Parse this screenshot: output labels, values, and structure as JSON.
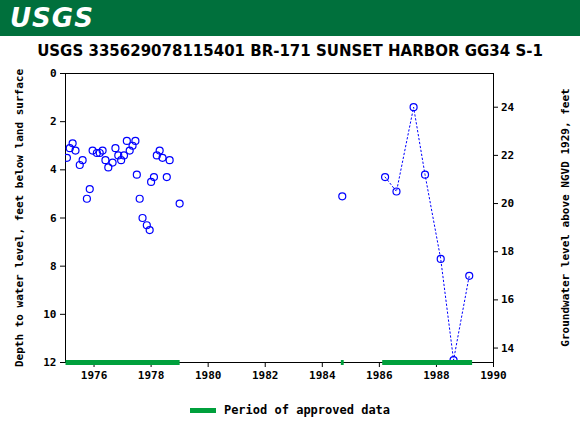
{
  "header": {
    "logo": "USGS"
  },
  "chart_data": {
    "type": "scatter",
    "title": "USGS 335629078115401 BR-171 SUNSET HARBOR GG34 S-1",
    "ylabel": "Depth to water level, feet below land surface",
    "y2label": "Groundwater level above NGVD 1929, feet",
    "x": [
      1975.05,
      1975.15,
      1975.25,
      1975.35,
      1975.5,
      1975.6,
      1975.75,
      1975.85,
      1975.95,
      1976.1,
      1976.2,
      1976.3,
      1976.4,
      1976.5,
      1976.65,
      1976.75,
      1976.85,
      1976.95,
      1977.05,
      1977.15,
      1977.25,
      1977.35,
      1977.45,
      1977.5,
      1977.6,
      1977.7,
      1977.85,
      1977.95,
      1978.0,
      1978.1,
      1978.2,
      1978.3,
      1978.4,
      1978.55,
      1978.65,
      1979.0,
      1984.7,
      1986.2,
      1986.6,
      1987.2,
      1987.6,
      1988.15,
      1988.6,
      1989.15
    ],
    "series": [
      {
        "type": "scatter",
        "marker": "circle",
        "color": "#0000ff",
        "values": [
          3.5,
          3.1,
          2.9,
          3.2,
          3.8,
          3.6,
          5.2,
          4.8,
          3.2,
          3.3,
          3.3,
          3.2,
          3.6,
          3.9,
          3.7,
          3.1,
          3.4,
          3.6,
          3.4,
          2.8,
          3.2,
          3.0,
          2.8,
          4.2,
          5.2,
          6.0,
          6.3,
          6.5,
          4.5,
          4.3,
          3.4,
          3.2,
          3.5,
          4.3,
          3.6,
          5.4,
          5.1,
          null,
          null,
          null,
          null,
          null,
          null,
          null
        ]
      },
      {
        "type": "line",
        "marker": "circle",
        "line_style": "dotted",
        "color": "#0000ff",
        "values": [
          null,
          null,
          null,
          null,
          null,
          null,
          null,
          null,
          null,
          null,
          null,
          null,
          null,
          null,
          null,
          null,
          null,
          null,
          null,
          null,
          null,
          null,
          null,
          null,
          null,
          null,
          null,
          null,
          null,
          null,
          null,
          null,
          null,
          null,
          null,
          null,
          null,
          4.3,
          4.9,
          1.4,
          4.2,
          7.7,
          11.9,
          8.4
        ]
      }
    ],
    "approved": {
      "label": "Period of approved data",
      "color": "#00a03c",
      "periods": [
        [
          1975.0,
          1979.0
        ],
        [
          1984.65,
          1984.75
        ],
        [
          1986.1,
          1989.25
        ]
      ]
    },
    "xlim": [
      1975,
      1990
    ],
    "xticks": [
      1976,
      1978,
      1980,
      1982,
      1984,
      1986,
      1988,
      1990
    ],
    "ylim": [
      0,
      12
    ],
    "yticks": [
      0,
      2,
      4,
      6,
      8,
      10,
      12
    ],
    "y2lim": [
      25.4,
      13.4
    ],
    "y2ticks": [
      14,
      16,
      18,
      20,
      22,
      24
    ],
    "grid": false
  }
}
